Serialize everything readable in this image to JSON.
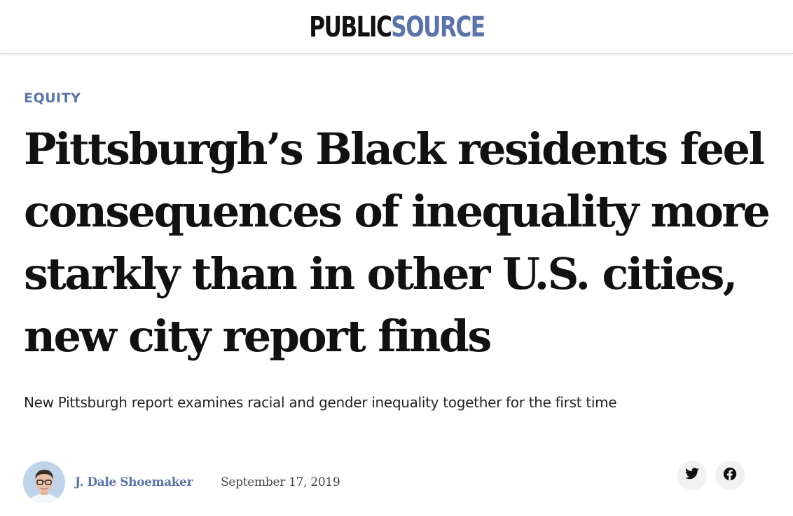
{
  "header": {
    "logo_part1": "PUBLIC",
    "logo_part2": "SOURCE",
    "logo_accent_color": "#5a73ad"
  },
  "article": {
    "category": "EQUITY",
    "headline": "Pittsburgh’s Black residents feel consequences of inequality more starkly than in other U.S. cities, new city report finds",
    "dek": "New Pittsburgh report examines racial and gender inequality together for the first time",
    "author": "J. Dale Shoemaker",
    "date": "September 17, 2019"
  },
  "share": {
    "icons": [
      "twitter-icon",
      "facebook-icon"
    ]
  },
  "colors": {
    "accent": "#5a73ad",
    "text": "#111111",
    "share_button_bg": "#f1f1f1"
  }
}
